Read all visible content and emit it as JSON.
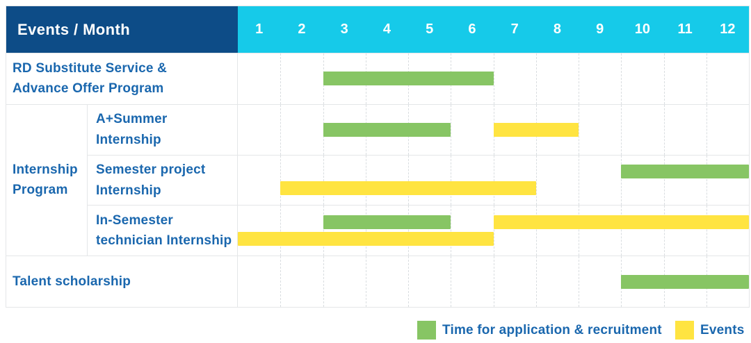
{
  "colors": {
    "header_bg": "#0D4C87",
    "months_bg": "#16CAE9",
    "bar_green": "#87C564",
    "bar_yellow": "#FFE441",
    "label_text": "#1A67AE",
    "grid_line": "#E4E6E8"
  },
  "header": {
    "title": "Events / Month",
    "months": [
      "1",
      "2",
      "3",
      "4",
      "5",
      "6",
      "7",
      "8",
      "9",
      "10",
      "11",
      "12"
    ]
  },
  "chart_data": {
    "type": "table",
    "title": "Events / Month",
    "categories": [
      "1",
      "2",
      "3",
      "4",
      "5",
      "6",
      "7",
      "8",
      "9",
      "10",
      "11",
      "12"
    ],
    "legend_position": "bottom-right",
    "grid": "dashed-vertical",
    "series": [
      {
        "name": "RD Substitute Service & Advance Offer Program",
        "bars": [
          {
            "type": "application",
            "start_month": 3,
            "end_month": 6
          }
        ]
      },
      {
        "name": "A+Summer Internship",
        "bars": [
          {
            "type": "application",
            "start_month": 3,
            "end_month": 5
          },
          {
            "type": "event",
            "start_month": 7,
            "end_month": 8
          }
        ]
      },
      {
        "name": "Semester project Internship",
        "bars": [
          {
            "type": "application",
            "start_month": 10,
            "end_month": 12
          },
          {
            "type": "event",
            "start_month": 2,
            "end_month": 7
          }
        ]
      },
      {
        "name": "In-Semester technician Internship",
        "bars": [
          {
            "type": "application",
            "start_month": 3,
            "end_month": 5
          },
          {
            "type": "event",
            "start_month": 7,
            "end_month": 12
          },
          {
            "type": "event",
            "start_month": 1,
            "end_month": 6
          }
        ]
      },
      {
        "name": "Talent scholarship",
        "bars": [
          {
            "type": "application",
            "start_month": 10,
            "end_month": 12
          }
        ]
      }
    ]
  },
  "body": {
    "sections": [
      {
        "type": "row",
        "name": "rd-substitute-program",
        "label": "RD Substitute Service & Advance Offer Program",
        "label_lines": [
          "RD Substitute Service &",
          "Advance Offer Program"
        ],
        "lines": [
          [
            {
              "color": "green",
              "start": 3,
              "end": 6
            }
          ]
        ]
      },
      {
        "type": "group",
        "name": "internship-program",
        "label": "Internship Program",
        "label_lines": [
          "Internship",
          "Program"
        ],
        "rows": [
          {
            "name": "a-plus-summer-internship",
            "label": "A+Summer Internship",
            "label_lines": [
              "A+Summer",
              "Internship"
            ],
            "lines": [
              [
                {
                  "color": "green",
                  "start": 3,
                  "end": 5
                },
                {
                  "color": "yellow",
                  "start": 7,
                  "end": 8
                }
              ]
            ]
          },
          {
            "name": "semester-project-internship",
            "label": "Semester project Internship",
            "label_lines": [
              "Semester project",
              "Internship"
            ],
            "lines": [
              [
                {
                  "color": "green",
                  "start": 10,
                  "end": 12
                }
              ],
              [
                {
                  "color": "yellow",
                  "start": 2,
                  "end": 7
                }
              ]
            ]
          },
          {
            "name": "in-semester-technician-internship",
            "label": "In-Semester technician Internship",
            "label_lines": [
              "In-Semester",
              "technician Internship"
            ],
            "lines": [
              [
                {
                  "color": "green",
                  "start": 3,
                  "end": 5
                },
                {
                  "color": "yellow",
                  "start": 7,
                  "end": 12
                }
              ],
              [
                {
                  "color": "yellow",
                  "start": 1,
                  "end": 6
                }
              ]
            ]
          }
        ]
      },
      {
        "type": "row",
        "name": "talent-scholarship",
        "label": "Talent scholarship",
        "label_lines": [
          "Talent scholarship"
        ],
        "lines": [
          [
            {
              "color": "green",
              "start": 10,
              "end": 12
            }
          ]
        ]
      }
    ]
  },
  "legend": [
    {
      "color": "green",
      "label": "Time for application & recruitment"
    },
    {
      "color": "yellow",
      "label": "Events"
    }
  ]
}
